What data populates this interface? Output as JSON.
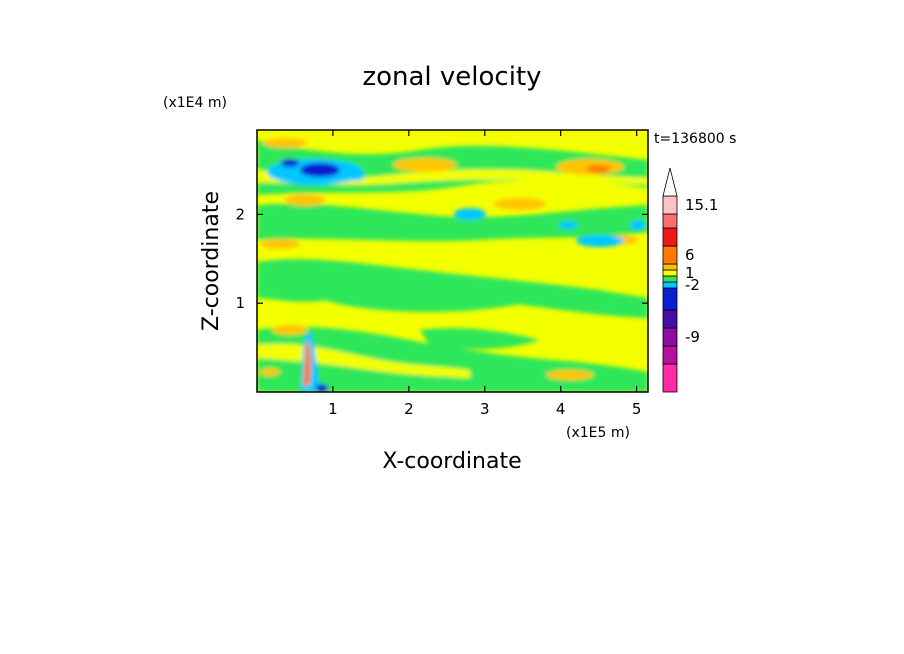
{
  "chart_data": {
    "type": "heatmap",
    "title": "zonal velocity",
    "xlabel": "X-coordinate",
    "ylabel": "Z-coordinate",
    "x_multiplier": "(x1E5 m)",
    "y_multiplier": "(x1E4 m)",
    "time_label": "t=136800 s",
    "xlim": [
      0,
      5.15
    ],
    "ylim": [
      0,
      2.95
    ],
    "x_ticks": [
      1,
      2,
      3,
      4,
      5
    ],
    "y_ticks": [
      1,
      2
    ],
    "x_tick_labels": [
      "1",
      "2",
      "3",
      "4",
      "5"
    ],
    "y_tick_labels": [
      "1",
      "2"
    ],
    "grid": false,
    "colorbar": {
      "levels": [
        {
          "color": "#ff2aa5",
          "label": ""
        },
        {
          "color": "#b4129e",
          "label": ""
        },
        {
          "color": "#8e0ea0",
          "label": "-9"
        },
        {
          "color": "#4a0aa8",
          "label": ""
        },
        {
          "color": "#0a1ed2",
          "label": ""
        },
        {
          "color": "#00c8ff",
          "label": "-2"
        },
        {
          "color": "#2ee65a",
          "label": ""
        },
        {
          "color": "#f4ff00",
          "label": "1"
        },
        {
          "color": "#ffc400",
          "label": ""
        },
        {
          "color": "#ff7a00",
          "label": "6"
        },
        {
          "color": "#ee1a1a",
          "label": ""
        },
        {
          "color": "#ff6e6e",
          "label": ""
        },
        {
          "color": "#ffc2c2",
          "label": "15.1"
        }
      ],
      "extend_max": true,
      "placement": "right"
    }
  }
}
